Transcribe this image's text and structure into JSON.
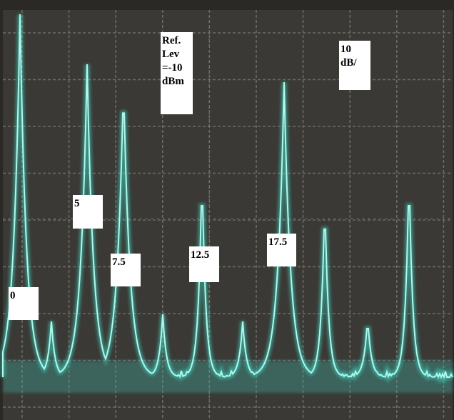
{
  "ref_level": {
    "lines": [
      "Ref.",
      "Lev",
      "=-10",
      "dBm"
    ]
  },
  "scale": {
    "lines": [
      "10",
      "dB/"
    ]
  },
  "peak_labels": [
    "0",
    "5",
    "7.5",
    "12.5",
    "17.5"
  ]
}
